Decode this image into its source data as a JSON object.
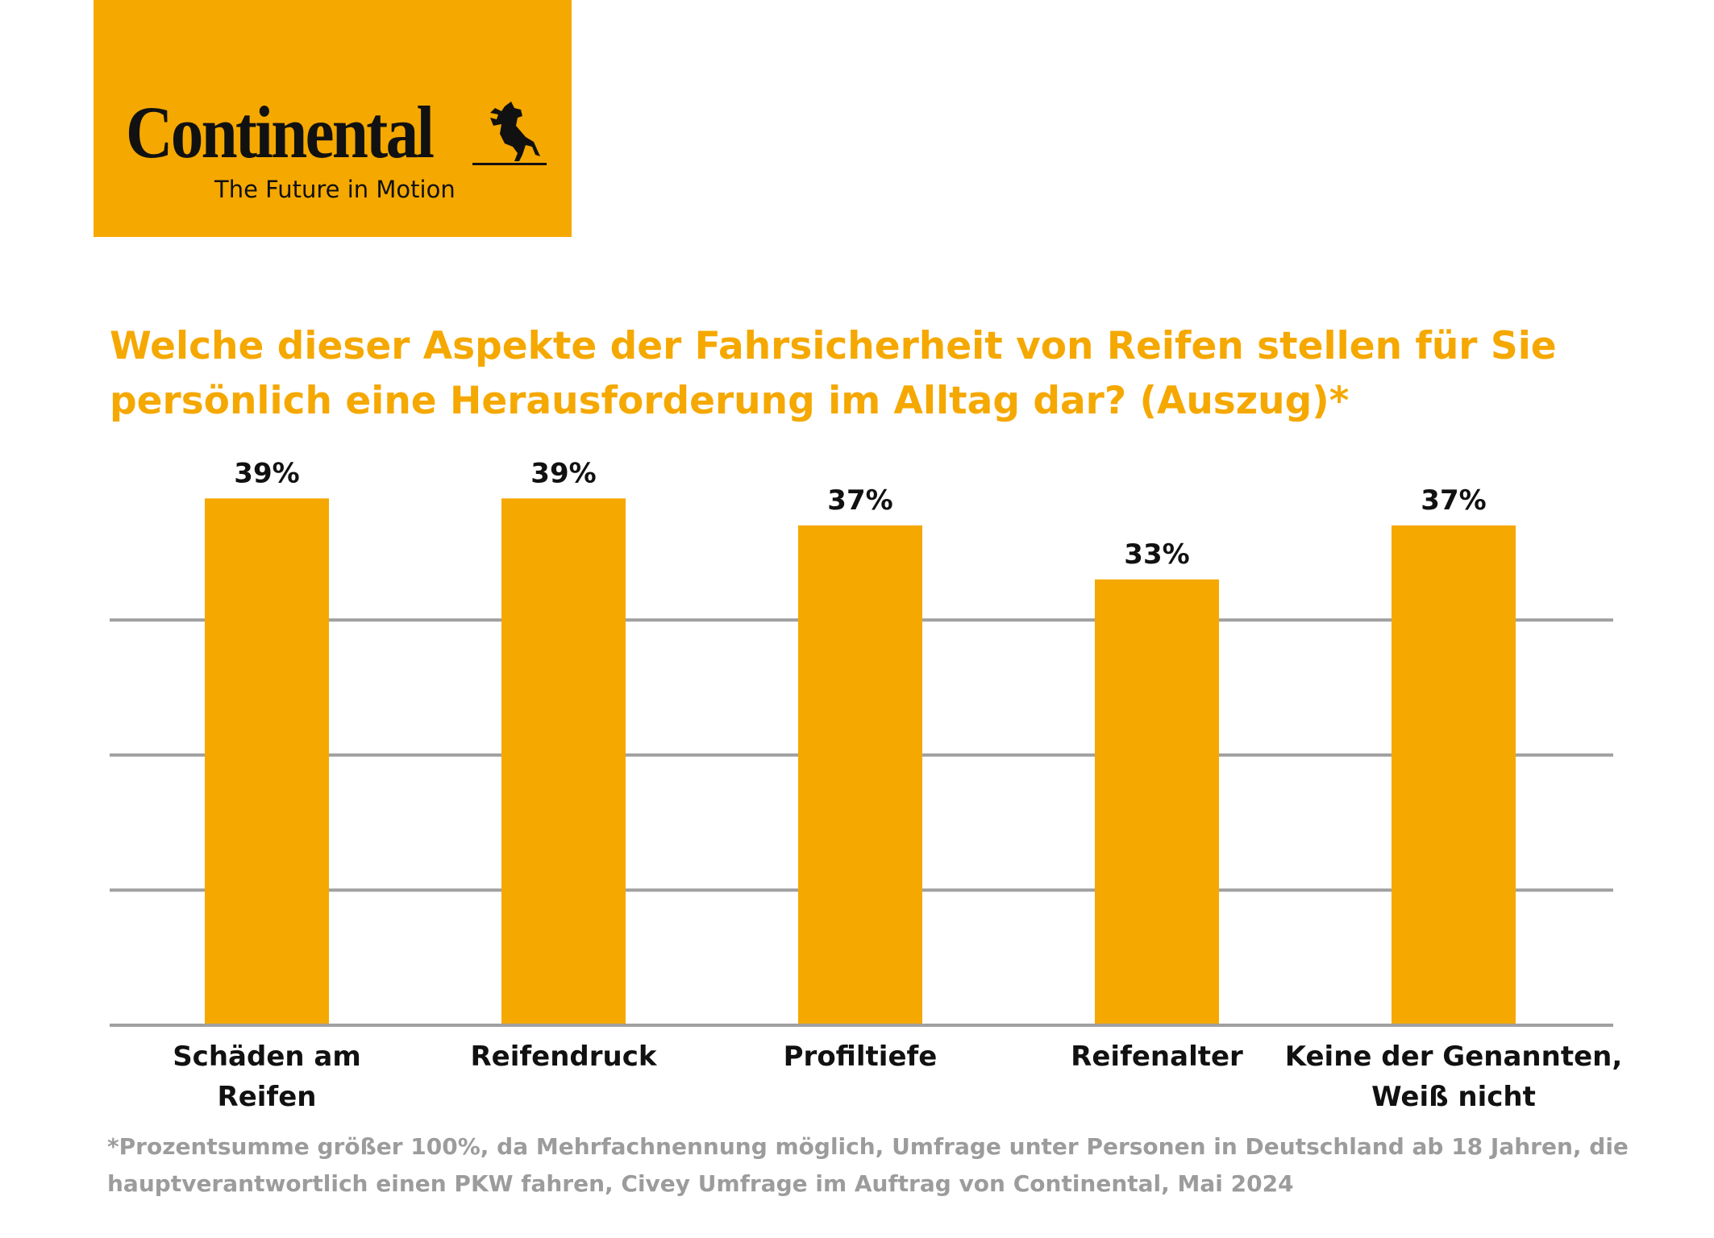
{
  "logo": {
    "wordmark": "Continental",
    "tagline": "The Future in Motion",
    "icon": "horse-icon",
    "background": "#F5A800"
  },
  "title": "Welche dieser Aspekte der Fahrsicherheit von Reifen stellen für Sie persönlich eine Herausforderung im Alltag dar? (Auszug)*",
  "footnote": "*Prozentsumme größer 100%, da Mehrfachnennung möglich, Umfrage unter Personen in Deutschland ab 18 Jahren, die hauptverantwortlich einen PKW fahren, Civey Umfrage im Auftrag von Continental, Mai 2024",
  "chart_data": {
    "type": "bar",
    "title": "Welche dieser Aspekte der Fahrsicherheit von Reifen stellen für Sie persönlich eine Herausforderung im Alltag dar? (Auszug)*",
    "categories": [
      [
        "Schäden am",
        "Reifen"
      ],
      [
        "Reifendruck"
      ],
      [
        "Profiltiefe"
      ],
      [
        "Reifenalter"
      ],
      [
        "Keine der Genannten,",
        "Weiß nicht"
      ]
    ],
    "values": [
      39,
      39,
      37,
      33,
      37
    ],
    "data_labels": [
      "39%",
      "39%",
      "37%",
      "33%",
      "37%"
    ],
    "unit": "%",
    "ylim": [
      0,
      40
    ],
    "gridlines": [
      10,
      20,
      30
    ],
    "grid": true,
    "y_tick_labels_shown": false,
    "bar_color": "#F5A800",
    "grid_color": "#A0A0A0"
  }
}
